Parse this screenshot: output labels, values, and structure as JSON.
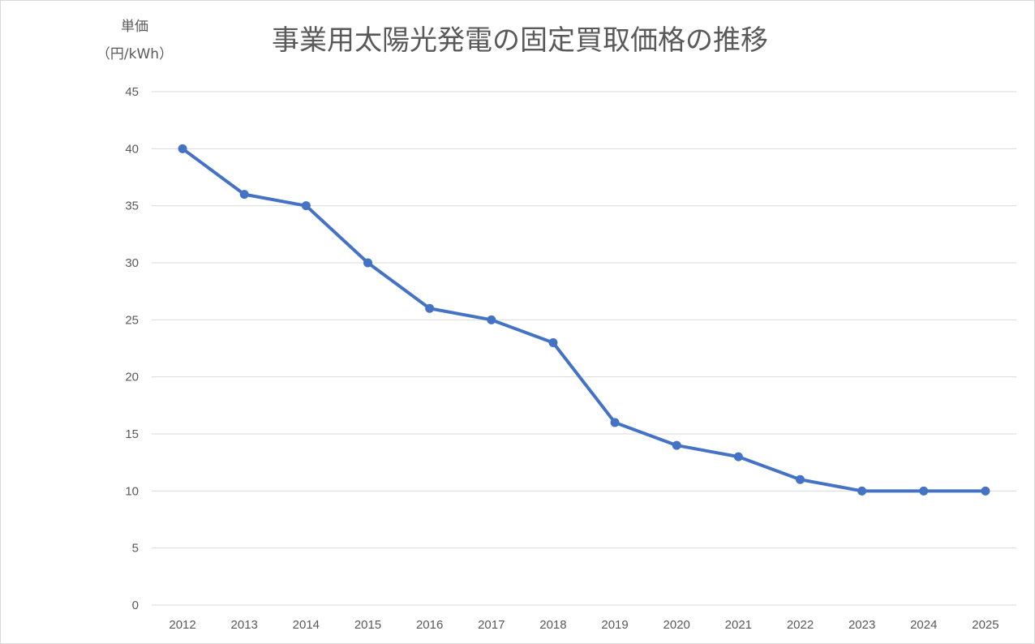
{
  "chart_data": {
    "type": "line",
    "title": "事業用太陽光発電の固定買取価格の推移",
    "ylabel_line1": "単価",
    "ylabel_line2": "（円/kWh）",
    "categories": [
      "2012",
      "2013",
      "2014",
      "2015",
      "2016",
      "2017",
      "2018",
      "2019",
      "2020",
      "2021",
      "2022",
      "2023",
      "2024",
      "2025"
    ],
    "series": [
      {
        "values": [
          40,
          36,
          35,
          30,
          26,
          25,
          23,
          16,
          14,
          13,
          11,
          10,
          10,
          10
        ],
        "color": "#4472c4"
      }
    ],
    "y_ticks": [
      "0",
      "5",
      "10",
      "15",
      "20",
      "25",
      "30",
      "35",
      "40",
      "45"
    ],
    "ylim": [
      0,
      45
    ],
    "grid": true,
    "legend": "none"
  }
}
